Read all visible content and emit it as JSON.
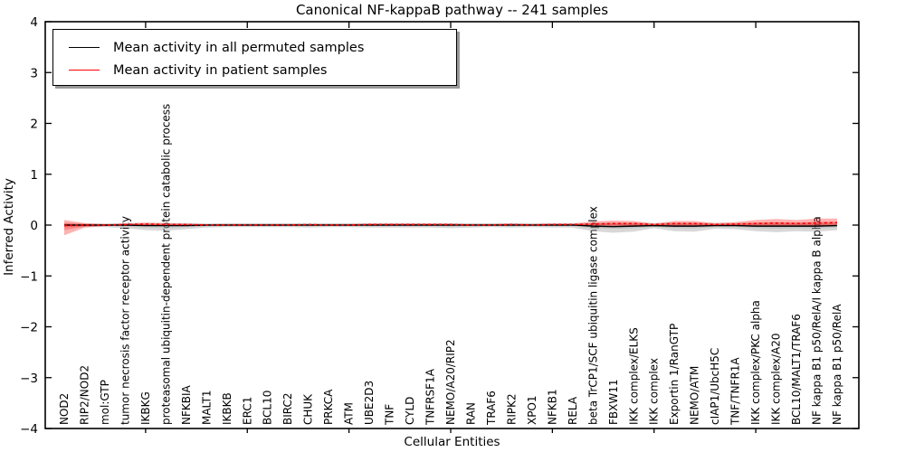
{
  "figure": {
    "title": "Canonical NF-kappaB pathway -- 241 samples",
    "xlabel": "Cellular Entities",
    "ylabel": "Inferred Activity"
  },
  "legend": {
    "items": [
      {
        "label": "Mean activity in all permuted samples",
        "color": "#000000"
      },
      {
        "label": "Mean activity in patient samples",
        "color": "#ff0000"
      }
    ]
  },
  "chart_data": {
    "type": "line",
    "title": "Canonical NF-kappaB pathway -- 241 samples",
    "xlabel": "Cellular Entities",
    "ylabel": "Inferred Activity",
    "ylim": [
      -4,
      4
    ],
    "yticks": [
      4,
      3,
      2,
      1,
      0,
      -1,
      -2,
      -3,
      -4
    ],
    "xtick_major_every": 5,
    "grid": false,
    "legend_position": "upper left",
    "categories": [
      "NOD2",
      "RIP2/NOD2",
      "mol:GTP",
      "tumor necrosis factor receptor activity",
      "IKBKG",
      "proteasomal ubiquitin-dependent protein catabolic process",
      "NFKBIA",
      "MALT1",
      "IKBKB",
      "ERC1",
      "BCL10",
      "BIRC2",
      "CHUK",
      "PRKCA",
      "ATM",
      "UBE2D3",
      "TNF",
      "CYLD",
      "TNFRSF1A",
      "NEMO/A20/RIP2",
      "RAN",
      "TRAF6",
      "RIPK2",
      "XPO1",
      "NFKB1",
      "RELA",
      "beta TrCP1/SCF ubiquitin ligase complex",
      "FBXW11",
      "IKK complex/ELKS",
      "IKK complex",
      "Exportin 1/RanGTP",
      "NEMO/ATM",
      "cIAP1/UbcH5C",
      "TNF/TNFR1A",
      "IKK complex/PKC alpha",
      "IKK complex/A20",
      "BCL10/MALT1/TRAF6",
      "NF kappa B1 p50/RelA/I kappa B alpha",
      "NF kappa B1 p50/RelA"
    ],
    "series": [
      {
        "name": "Mean activity in all permuted samples",
        "color": "#000000",
        "style": "solid",
        "values": [
          0,
          0,
          0,
          0,
          -0.01,
          -0.01,
          -0.01,
          0,
          0,
          0,
          0,
          0,
          0,
          0,
          0,
          0,
          0,
          0,
          0,
          0,
          0,
          0,
          0,
          0,
          0,
          0,
          -0.02,
          -0.03,
          -0.02,
          -0.01,
          -0.02,
          -0.02,
          -0.01,
          -0.01,
          -0.02,
          -0.02,
          -0.02,
          -0.02,
          -0.01
        ]
      },
      {
        "name": "Mean activity in patient samples",
        "color": "#ff0000",
        "style": "dashed",
        "values": [
          -0.01,
          0,
          0,
          0.01,
          0.02,
          0.01,
          0.01,
          0,
          0,
          0,
          0,
          0,
          0.01,
          0,
          0,
          0.01,
          0.01,
          0.01,
          0.01,
          0.01,
          0,
          0,
          0.01,
          0,
          0.01,
          0.01,
          0.02,
          0.03,
          0.03,
          0.01,
          0.03,
          0.03,
          0.01,
          0.02,
          0.03,
          0.04,
          0.03,
          0.04,
          0.05
        ]
      }
    ],
    "bands": [
      {
        "name": "permuted-samples-std-band",
        "color": "#999999",
        "opacity": 0.38,
        "upper": [
          0.03,
          0.03,
          0.03,
          0.04,
          0.04,
          0.04,
          0.04,
          0.03,
          0.04,
          0.04,
          0.04,
          0.04,
          0.04,
          0.04,
          0.04,
          0.04,
          0.04,
          0.04,
          0.04,
          0.04,
          0.04,
          0.04,
          0.04,
          0.04,
          0.04,
          0.04,
          0.04,
          0.05,
          0.05,
          0.04,
          0.05,
          0.05,
          0.04,
          0.04,
          0.05,
          0.05,
          0.05,
          0.05,
          0.05
        ],
        "lower": [
          -0.04,
          -0.04,
          -0.04,
          -0.06,
          -0.1,
          -0.11,
          -0.08,
          -0.05,
          -0.04,
          -0.04,
          -0.04,
          -0.04,
          -0.05,
          -0.04,
          -0.04,
          -0.05,
          -0.05,
          -0.05,
          -0.05,
          -0.06,
          -0.05,
          -0.04,
          -0.05,
          -0.04,
          -0.05,
          -0.05,
          -0.12,
          -0.15,
          -0.13,
          -0.06,
          -0.12,
          -0.13,
          -0.07,
          -0.08,
          -0.12,
          -0.14,
          -0.12,
          -0.13,
          -0.1
        ]
      },
      {
        "name": "patient-samples-std-band",
        "color": "#ff0000",
        "opacity": 0.3,
        "upper": [
          0.1,
          0.04,
          0.02,
          0.03,
          0.05,
          0.04,
          0.03,
          0.02,
          0.02,
          0.02,
          0.02,
          0.02,
          0.02,
          0.02,
          0.02,
          0.03,
          0.03,
          0.03,
          0.03,
          0.03,
          0.02,
          0.02,
          0.03,
          0.02,
          0.03,
          0.03,
          0.07,
          0.09,
          0.08,
          0.03,
          0.08,
          0.08,
          0.04,
          0.06,
          0.1,
          0.12,
          0.1,
          0.13,
          0.13
        ],
        "lower": [
          -0.2,
          -0.05,
          -0.02,
          -0.01,
          -0.01,
          -0.01,
          -0.01,
          -0.01,
          -0.01,
          -0.01,
          -0.01,
          -0.01,
          -0.01,
          -0.01,
          -0.01,
          -0.01,
          -0.01,
          -0.01,
          -0.01,
          -0.01,
          -0.01,
          -0.01,
          -0.01,
          -0.01,
          -0.01,
          -0.01,
          -0.01,
          -0.02,
          -0.02,
          -0.01,
          -0.02,
          -0.02,
          -0.01,
          -0.01,
          -0.02,
          -0.02,
          -0.02,
          -0.03,
          -0.02
        ]
      }
    ]
  }
}
